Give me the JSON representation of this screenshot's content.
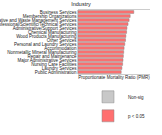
{
  "chart_data": {
    "type": "bar",
    "orientation": "horizontal",
    "title": "Industry",
    "x_label": "Proportionate Mortality Ratio (PMR)",
    "categories": [
      "Business Services",
      "Membership Organizations",
      "Administrative and Waste Management Services",
      "Professional/Scientific/Technical Services",
      "Administrative/Support Services",
      "Chemical Manufacturing",
      "Wood Products Manufacturing",
      "Other Services",
      "Personal and Laundry Services",
      "Accommodation",
      "Nonmetallic Mineral Manufacturing",
      "Repair and Maintenance",
      "Major Administrative Services",
      "Nursing Care Facilities",
      "Laundry Services",
      "Public Administration"
    ],
    "series": [
      {
        "name": "Non-sig",
        "color": "#c8c8c8",
        "values": [
          null,
          null,
          null,
          null,
          null,
          null,
          null,
          null,
          null,
          null,
          null,
          null,
          null,
          null,
          null,
          null
        ]
      },
      {
        "name": "p < 0.05",
        "color": "#ff6f6f",
        "values": [
          1.55,
          1.45,
          1.42,
          1.39,
          1.36,
          1.35,
          1.33,
          1.32,
          1.3,
          1.28,
          1.27,
          1.26,
          1.25,
          1.24,
          1.22,
          1.2
        ]
      }
    ],
    "xlim": [
      0,
      2
    ],
    "tick_labels": "y",
    "legend": "bottom right",
    "grid": false
  }
}
